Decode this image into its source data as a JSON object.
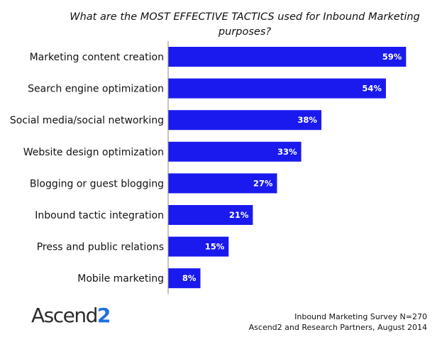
{
  "chart_data": {
    "type": "bar",
    "orientation": "horizontal",
    "title": "What are the MOST EFFECTIVE TACTICS used for Inbound Marketing purposes?",
    "categories": [
      "Marketing content creation",
      "Search engine optimization",
      "Social media/social networking",
      "Website design optimization",
      "Blogging or guest blogging",
      "Inbound tactic integration",
      "Press and public relations",
      "Mobile marketing"
    ],
    "values": [
      59,
      54,
      38,
      33,
      27,
      21,
      15,
      8
    ],
    "value_labels": [
      "59%",
      "54%",
      "38%",
      "33%",
      "27%",
      "21%",
      "15%",
      "8%"
    ],
    "unit": "%",
    "xlim": [
      0,
      60
    ],
    "bar_color": "#1a1aee",
    "grid": false,
    "legend": "none"
  },
  "branding": {
    "logo_text_main": "Ascend",
    "logo_text_accent": "2",
    "logo_accent_color": "#1f6fe0"
  },
  "footnote": {
    "line1": "Inbound Marketing Survey N=270",
    "line2": "Ascend2 and Research Partners, August 2014"
  }
}
